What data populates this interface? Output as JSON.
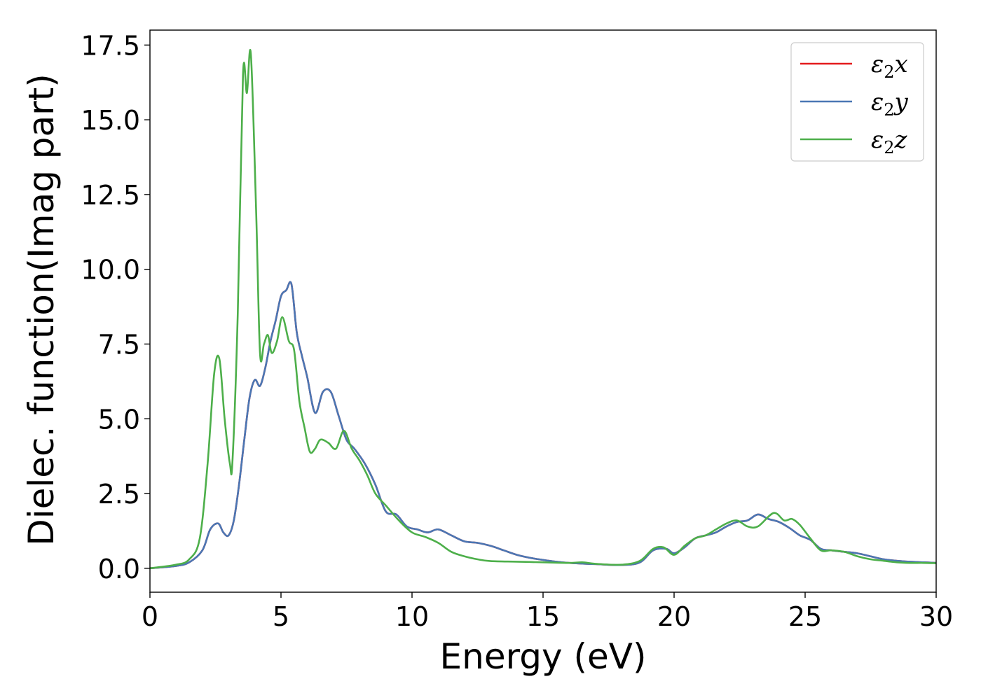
{
  "chart_data": {
    "type": "line",
    "title": "",
    "xlabel": "Energy (eV)",
    "ylabel": "Dielec. function(Imag part)",
    "xlim": [
      0,
      30
    ],
    "ylim": [
      -0.8,
      18.0
    ],
    "xticks": [
      0,
      5,
      10,
      15,
      20,
      25,
      30
    ],
    "xtick_labels": [
      "0",
      "5",
      "10",
      "15",
      "20",
      "25",
      "30"
    ],
    "yticks": [
      0.0,
      2.5,
      5.0,
      7.5,
      10.0,
      12.5,
      15.0,
      17.5
    ],
    "ytick_labels": [
      "0.0",
      "2.5",
      "5.0",
      "7.5",
      "10.0",
      "12.5",
      "15.0",
      "17.5"
    ],
    "grid": false,
    "legend_position": "top-right",
    "series": [
      {
        "name": "ε2x",
        "legend_base": "ε",
        "legend_sub": "2",
        "legend_tail": "x",
        "color": "#e41a1c",
        "x": [
          0,
          1.0,
          1.5,
          2.0,
          2.3,
          2.6,
          2.8,
          3.0,
          3.2,
          3.4,
          3.6,
          3.8,
          4.0,
          4.2,
          4.4,
          4.6,
          4.8,
          5.0,
          5.2,
          5.4,
          5.6,
          5.8,
          6.0,
          6.3,
          6.6,
          6.9,
          7.2,
          7.5,
          7.8,
          8.2,
          8.6,
          9.0,
          9.4,
          9.8,
          10.2,
          10.6,
          11.0,
          11.5,
          12.0,
          12.5,
          13.0,
          13.5,
          14.0,
          14.5,
          15.0,
          15.5,
          16.0,
          17.0,
          18.0,
          18.7,
          19.2,
          19.7,
          20.0,
          20.4,
          20.8,
          21.2,
          21.6,
          22.0,
          22.4,
          22.8,
          23.2,
          23.6,
          24.0,
          24.4,
          24.8,
          25.2,
          25.6,
          26.0,
          26.5,
          27.0,
          27.5,
          28.0,
          28.5,
          29.0,
          29.5,
          30.0
        ],
        "values": [
          0.0,
          0.08,
          0.2,
          0.6,
          1.3,
          1.5,
          1.2,
          1.1,
          1.6,
          2.8,
          4.3,
          5.7,
          6.3,
          6.1,
          6.7,
          7.6,
          8.3,
          9.1,
          9.3,
          9.5,
          7.9,
          7.1,
          6.4,
          5.2,
          5.9,
          5.9,
          5.1,
          4.3,
          4.0,
          3.5,
          2.8,
          1.9,
          1.8,
          1.4,
          1.3,
          1.2,
          1.3,
          1.1,
          0.9,
          0.85,
          0.75,
          0.6,
          0.45,
          0.35,
          0.28,
          0.22,
          0.18,
          0.14,
          0.11,
          0.2,
          0.6,
          0.65,
          0.5,
          0.7,
          1.0,
          1.1,
          1.2,
          1.4,
          1.55,
          1.6,
          1.8,
          1.65,
          1.55,
          1.35,
          1.1,
          0.95,
          0.65,
          0.6,
          0.55,
          0.5,
          0.4,
          0.3,
          0.25,
          0.22,
          0.2,
          0.18
        ]
      },
      {
        "name": "ε2y",
        "legend_base": "ε",
        "legend_sub": "2",
        "legend_tail": "y",
        "color": "#4a77b4",
        "x": [
          0,
          1.0,
          1.5,
          2.0,
          2.3,
          2.6,
          2.8,
          3.0,
          3.2,
          3.4,
          3.6,
          3.8,
          4.0,
          4.2,
          4.4,
          4.6,
          4.8,
          5.0,
          5.2,
          5.4,
          5.6,
          5.8,
          6.0,
          6.3,
          6.6,
          6.9,
          7.2,
          7.5,
          7.8,
          8.2,
          8.6,
          9.0,
          9.4,
          9.8,
          10.2,
          10.6,
          11.0,
          11.5,
          12.0,
          12.5,
          13.0,
          13.5,
          14.0,
          14.5,
          15.0,
          15.5,
          16.0,
          17.0,
          18.0,
          18.7,
          19.2,
          19.7,
          20.0,
          20.4,
          20.8,
          21.2,
          21.6,
          22.0,
          22.4,
          22.8,
          23.2,
          23.6,
          24.0,
          24.4,
          24.8,
          25.2,
          25.6,
          26.0,
          26.5,
          27.0,
          27.5,
          28.0,
          28.5,
          29.0,
          29.5,
          30.0
        ],
        "values": [
          0.0,
          0.08,
          0.2,
          0.6,
          1.3,
          1.5,
          1.2,
          1.1,
          1.6,
          2.8,
          4.3,
          5.7,
          6.3,
          6.1,
          6.7,
          7.6,
          8.3,
          9.1,
          9.3,
          9.5,
          7.9,
          7.1,
          6.4,
          5.2,
          5.9,
          5.9,
          5.1,
          4.3,
          4.0,
          3.5,
          2.8,
          1.9,
          1.8,
          1.4,
          1.3,
          1.2,
          1.3,
          1.1,
          0.9,
          0.85,
          0.75,
          0.6,
          0.45,
          0.35,
          0.28,
          0.22,
          0.18,
          0.14,
          0.11,
          0.2,
          0.6,
          0.65,
          0.5,
          0.7,
          1.0,
          1.1,
          1.2,
          1.4,
          1.55,
          1.6,
          1.8,
          1.65,
          1.55,
          1.35,
          1.1,
          0.95,
          0.65,
          0.6,
          0.55,
          0.5,
          0.4,
          0.3,
          0.25,
          0.22,
          0.2,
          0.18
        ]
      },
      {
        "name": "ε2z",
        "legend_base": "ε",
        "legend_sub": "2",
        "legend_tail": "z",
        "color": "#4daf4a",
        "x": [
          0,
          1.0,
          1.5,
          1.9,
          2.2,
          2.45,
          2.65,
          2.85,
          3.05,
          3.15,
          3.35,
          3.55,
          3.7,
          3.85,
          4.05,
          4.2,
          4.35,
          4.5,
          4.65,
          4.85,
          5.05,
          5.3,
          5.5,
          5.7,
          5.9,
          6.1,
          6.3,
          6.5,
          6.8,
          7.1,
          7.4,
          7.7,
          8.0,
          8.3,
          8.6,
          9.0,
          9.5,
          10.0,
          10.5,
          11.0,
          11.5,
          12.0,
          12.5,
          13.0,
          14.0,
          15.0,
          16.0,
          16.5,
          17.0,
          18.0,
          18.7,
          19.2,
          19.6,
          20.0,
          20.4,
          20.8,
          21.2,
          21.6,
          22.0,
          22.4,
          22.8,
          23.2,
          23.8,
          24.2,
          24.5,
          24.8,
          25.2,
          25.6,
          26.0,
          26.5,
          27.0,
          27.5,
          28.0,
          28.5,
          29.0,
          29.5,
          30.0
        ],
        "values": [
          0.0,
          0.12,
          0.3,
          1.0,
          3.5,
          6.5,
          7.0,
          5.0,
          3.5,
          3.6,
          8.5,
          16.5,
          15.9,
          17.2,
          12.0,
          7.2,
          7.5,
          7.8,
          7.2,
          7.6,
          8.4,
          7.6,
          7.3,
          5.6,
          4.7,
          3.9,
          4.0,
          4.3,
          4.2,
          4.0,
          4.6,
          4.0,
          3.6,
          3.1,
          2.5,
          2.1,
          1.6,
          1.2,
          1.05,
          0.85,
          0.55,
          0.4,
          0.3,
          0.24,
          0.22,
          0.2,
          0.18,
          0.2,
          0.15,
          0.12,
          0.25,
          0.65,
          0.7,
          0.45,
          0.75,
          1.0,
          1.1,
          1.3,
          1.5,
          1.6,
          1.4,
          1.4,
          1.85,
          1.6,
          1.65,
          1.45,
          1.0,
          0.6,
          0.6,
          0.55,
          0.4,
          0.3,
          0.25,
          0.2,
          0.18,
          0.18,
          0.17
        ]
      }
    ]
  }
}
